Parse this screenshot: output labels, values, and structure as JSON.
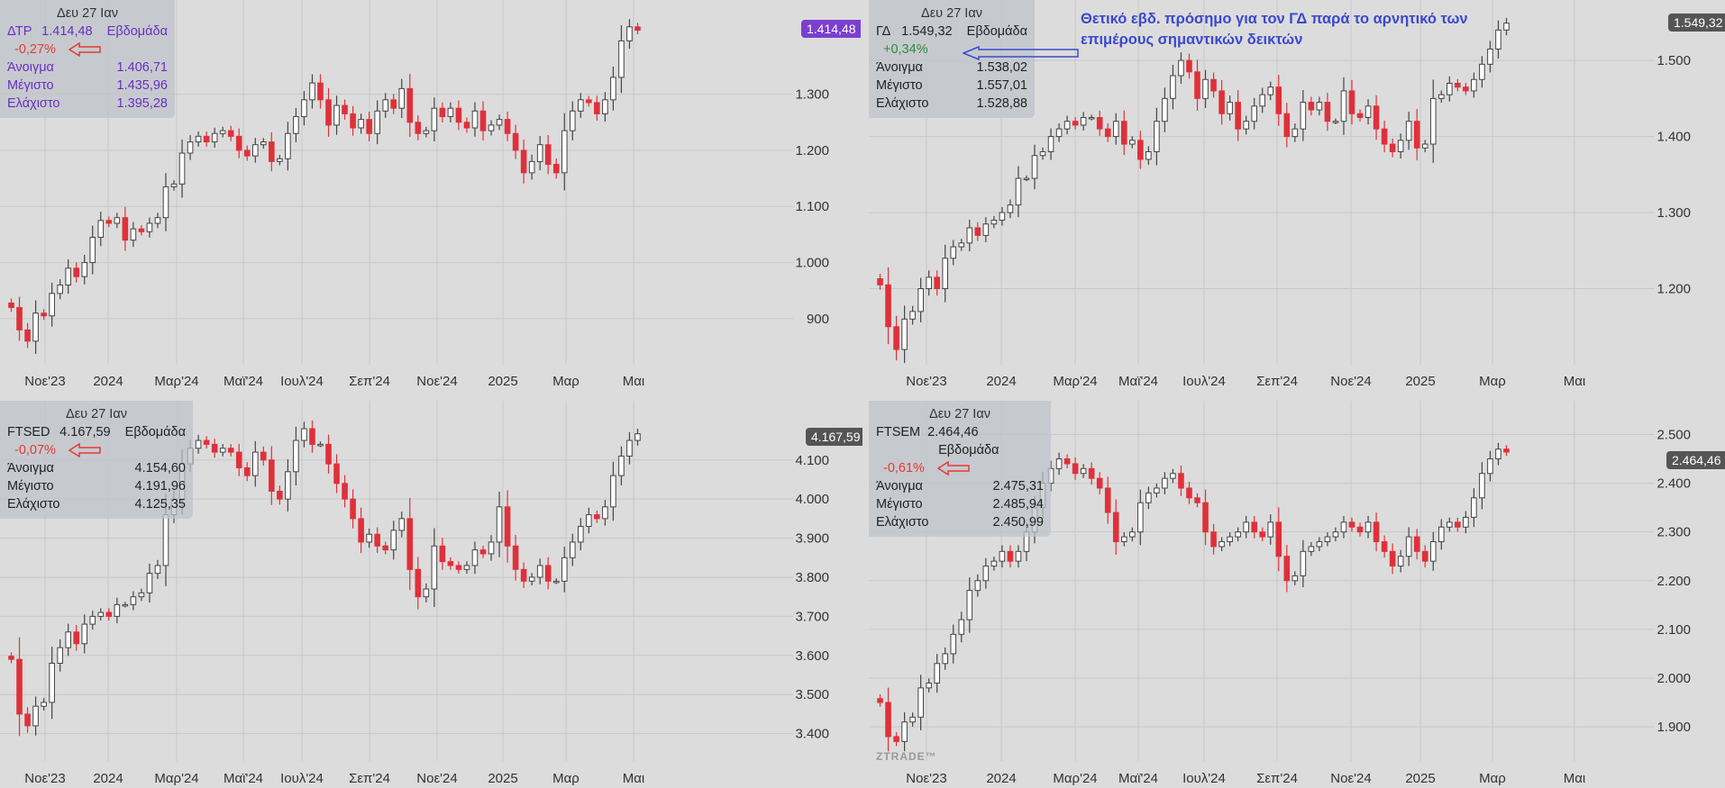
{
  "annotation": {
    "line1": "Θετικό εβδ. πρόσημο για τον ΓΔ παρά το αρνητικό των",
    "line2": "επιμέρους σημαντικών δεικτών"
  },
  "watermark": "ZTRADE™",
  "colors": {
    "up": "#ffffff",
    "down": "#e0303a",
    "grid": "#c8c8c8",
    "wick": "#333333"
  },
  "chart_data": [
    {
      "type": "candlestick",
      "symbol": "ΔΤΡ",
      "date": "Δευ 27 Ιαν",
      "period": "Εβδομάδα",
      "close_label": "1.414,48",
      "change": "-0,27%",
      "stats": [
        {
          "label": "Άνοιγμα",
          "value": "1.406,71"
        },
        {
          "label": "Μέγιστο",
          "value": "1.435,96"
        },
        {
          "label": "Ελάχιστο",
          "value": "1.395,28"
        }
      ],
      "price_tag": "1.414,48",
      "price_tag_color": "#7a3fd0",
      "ylim": [
        818,
        1455
      ],
      "y_ticks": [
        900,
        1000,
        1100,
        1200,
        1300
      ],
      "y_tick_labels": [
        "900",
        "1.000",
        "1.100",
        "1.200",
        "1.300"
      ],
      "x_ticks": [
        "Νοε'23",
        "2024",
        "Μαρ'24",
        "Μαϊ'24",
        "Ιουλ'24",
        "Σεπ'24",
        "Νοε'24",
        "2025",
        "Μαρ",
        "Μαι"
      ],
      "closes": [
        920,
        880,
        860,
        910,
        905,
        945,
        960,
        990,
        975,
        1000,
        1045,
        1075,
        1070,
        1080,
        1040,
        1060,
        1055,
        1070,
        1080,
        1135,
        1140,
        1195,
        1215,
        1225,
        1215,
        1230,
        1235,
        1225,
        1200,
        1190,
        1210,
        1215,
        1180,
        1185,
        1230,
        1260,
        1290,
        1320,
        1290,
        1245,
        1280,
        1265,
        1240,
        1255,
        1230,
        1270,
        1290,
        1275,
        1310,
        1250,
        1230,
        1235,
        1275,
        1260,
        1275,
        1250,
        1240,
        1270,
        1235,
        1245,
        1255,
        1230,
        1200,
        1160,
        1180,
        1210,
        1175,
        1160,
        1235,
        1270,
        1290,
        1285,
        1265,
        1290,
        1330,
        1395,
        1420,
        1414
      ]
    },
    {
      "type": "candlestick",
      "symbol": "ΓΔ",
      "date": "Δευ 27 Ιαν",
      "period": "Εβδομάδα",
      "close_label": "1.549,32",
      "change": "+0,34%",
      "stats": [
        {
          "label": "Άνοιγμα",
          "value": "1.538,02"
        },
        {
          "label": "Μέγιστο",
          "value": "1.557,01"
        },
        {
          "label": "Ελάχιστο",
          "value": "1.528,88"
        }
      ],
      "price_tag": "1.549,32",
      "price_tag_color": "#555555",
      "ylim": [
        1100,
        1570
      ],
      "y_ticks": [
        1200,
        1300,
        1400,
        1500
      ],
      "y_tick_labels": [
        "1.200",
        "1.300",
        "1.400",
        "1.500"
      ],
      "x_ticks": [
        "Νοε'23",
        "2024",
        "Μαρ'24",
        "Μαϊ'24",
        "Ιουλ'24",
        "Σεπ'24",
        "Νοε'24",
        "2025",
        "Μαρ",
        "Μαι"
      ],
      "closes": [
        1205,
        1150,
        1120,
        1160,
        1170,
        1200,
        1215,
        1200,
        1240,
        1255,
        1260,
        1280,
        1270,
        1285,
        1290,
        1300,
        1310,
        1345,
        1345,
        1375,
        1380,
        1400,
        1410,
        1420,
        1415,
        1425,
        1425,
        1410,
        1400,
        1420,
        1390,
        1395,
        1370,
        1380,
        1420,
        1450,
        1480,
        1500,
        1485,
        1450,
        1475,
        1460,
        1430,
        1445,
        1410,
        1420,
        1440,
        1455,
        1465,
        1430,
        1400,
        1410,
        1445,
        1435,
        1445,
        1420,
        1420,
        1460,
        1430,
        1425,
        1440,
        1410,
        1390,
        1380,
        1395,
        1420,
        1385,
        1390,
        1450,
        1455,
        1470,
        1465,
        1460,
        1475,
        1495,
        1515,
        1540,
        1549
      ]
    },
    {
      "type": "candlestick",
      "symbol": "FTSED",
      "date": "Δευ 27 Ιαν",
      "period": "Εβδομάδα",
      "close_label": "4.167,59",
      "change": "-0,07%",
      "stats": [
        {
          "label": "Άνοιγμα",
          "value": "4.154,60"
        },
        {
          "label": "Μέγιστο",
          "value": "4.191,96"
        },
        {
          "label": "Ελάχιστο",
          "value": "4.125,35"
        }
      ],
      "price_tag": "4.167,59",
      "price_tag_color": "#555555",
      "ylim": [
        3330,
        4240
      ],
      "y_ticks": [
        3400,
        3500,
        3600,
        3700,
        3800,
        3900,
        4000,
        4100
      ],
      "y_tick_labels": [
        "3.400",
        "3.500",
        "3.600",
        "3.700",
        "3.800",
        "3.900",
        "4.000",
        "4.100"
      ],
      "x_ticks": [
        "Νοε'23",
        "2024",
        "Μαρ'24",
        "Μαϊ'24",
        "Ιουλ'24",
        "Σεπ'24",
        "Νοε'24",
        "2025",
        "Μαρ",
        "Μαι"
      ],
      "closes": [
        3590,
        3450,
        3420,
        3470,
        3480,
        3580,
        3620,
        3660,
        3630,
        3680,
        3700,
        3710,
        3700,
        3730,
        3730,
        3750,
        3760,
        3810,
        3830,
        3960,
        4000,
        4090,
        4130,
        4150,
        4140,
        4120,
        4130,
        4120,
        4080,
        4060,
        4120,
        4100,
        4020,
        4000,
        4070,
        4150,
        4180,
        4140,
        4140,
        4090,
        4040,
        4000,
        3950,
        3890,
        3910,
        3880,
        3870,
        3920,
        3950,
        3820,
        3750,
        3770,
        3880,
        3840,
        3830,
        3820,
        3830,
        3870,
        3860,
        3890,
        3980,
        3880,
        3820,
        3790,
        3800,
        3830,
        3790,
        3790,
        3850,
        3890,
        3930,
        3960,
        3950,
        3980,
        4060,
        4110,
        4150,
        4167
      ]
    },
    {
      "type": "candlestick",
      "symbol": "FTSEM",
      "date": "Δευ 27 Ιαν",
      "period": "Εβδομάδα",
      "close_label": "2.464,46",
      "change": "-0,61%",
      "stats": [
        {
          "label": "Άνοιγμα",
          "value": "2.475,31"
        },
        {
          "label": "Μέγιστο",
          "value": "2.485,94"
        },
        {
          "label": "Ελάχιστο",
          "value": "2.450,99"
        }
      ],
      "price_tag": "2.464,46",
      "price_tag_color": "#555555",
      "ylim": [
        1830,
        2560
      ],
      "y_ticks": [
        1900,
        2000,
        2100,
        2200,
        2300,
        2400,
        2500
      ],
      "y_tick_labels": [
        "1.900",
        "2.000",
        "2.100",
        "2.200",
        "2.300",
        "2.400",
        "2.500"
      ],
      "x_ticks": [
        "Νοε'23",
        "2024",
        "Μαρ'24",
        "Μαϊ'24",
        "Ιουλ'24",
        "Σεπ'24",
        "Νοε'24",
        "2025",
        "Μαρ",
        "Μαι"
      ],
      "closes": [
        1950,
        1880,
        1870,
        1910,
        1920,
        1980,
        1990,
        2030,
        2050,
        2090,
        2120,
        2180,
        2200,
        2230,
        2240,
        2260,
        2240,
        2260,
        2300,
        2350,
        2400,
        2430,
        2450,
        2440,
        2420,
        2430,
        2410,
        2390,
        2340,
        2280,
        2290,
        2300,
        2360,
        2380,
        2390,
        2410,
        2420,
        2390,
        2370,
        2360,
        2300,
        2270,
        2280,
        2290,
        2300,
        2320,
        2300,
        2290,
        2320,
        2250,
        2200,
        2210,
        2260,
        2270,
        2280,
        2290,
        2300,
        2320,
        2310,
        2300,
        2320,
        2280,
        2260,
        2230,
        2250,
        2290,
        2260,
        2240,
        2280,
        2310,
        2320,
        2310,
        2330,
        2370,
        2420,
        2450,
        2470,
        2464
      ]
    }
  ]
}
